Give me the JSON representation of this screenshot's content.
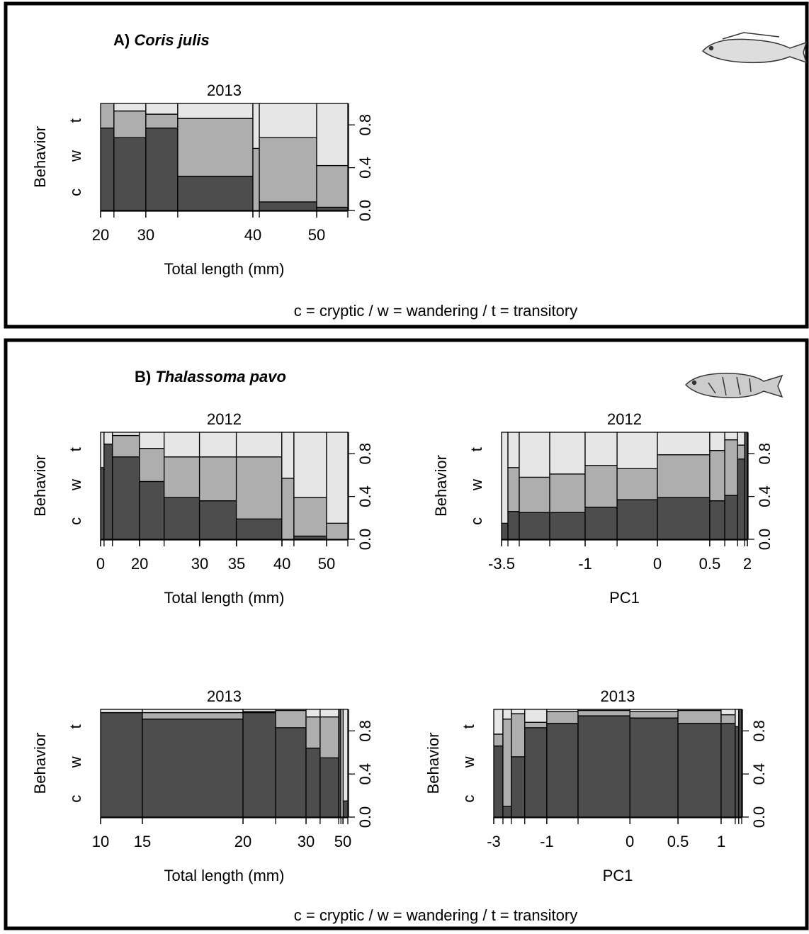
{
  "panels": [
    {
      "label": "A)",
      "species": "Coris julis",
      "legend": "c = cryptic / w = wandering / t = transitory"
    },
    {
      "label": "B)",
      "species": "Thalassoma pavo",
      "legend": "c = cryptic / w = wandering / t = transitory"
    }
  ],
  "chart_data": [
    {
      "type": "spineplot",
      "title": "2013",
      "xlabel": "Total length (mm)",
      "ylabel": "Behavior",
      "widths": [
        0.054,
        0.129,
        0.129,
        0.304,
        0.026,
        0.232,
        0.126
      ],
      "series": [
        {
          "name": "c",
          "color": "#4d4d4d",
          "values": [
            0.77,
            0.68,
            0.77,
            0.32,
            0.0,
            0.08,
            0.03
          ]
        },
        {
          "name": "w",
          "color": "#aeaeae",
          "values": [
            0.23,
            0.25,
            0.13,
            0.54,
            0.58,
            0.6,
            0.39
          ]
        },
        {
          "name": "t",
          "color": "#e6e6e6",
          "values": [
            0.0,
            0.07,
            0.1,
            0.14,
            0.42,
            0.32,
            0.58
          ]
        }
      ],
      "xlim": [
        0,
        1
      ],
      "xticks": [
        {
          "value": 0,
          "label": "20"
        },
        {
          "value": 0.183,
          "label": "30"
        },
        {
          "value": 0.616,
          "label": "40"
        },
        {
          "value": 0.874,
          "label": "50"
        }
      ],
      "ylim": [
        0,
        1
      ],
      "yticks": [
        {
          "value": 0,
          "label": "0.0"
        },
        0.4,
        0.8
      ]
    },
    {
      "type": "spineplot",
      "title": "2012",
      "xlabel": "Total length (mm)",
      "ylabel": "Behavior",
      "widths": [
        0.014,
        0.034,
        0.109,
        0.1,
        0.143,
        0.149,
        0.184,
        0.049,
        0.132,
        0.086
      ],
      "series": [
        {
          "name": "c",
          "color": "#4d4d4d",
          "values": [
            0.67,
            0.89,
            0.77,
            0.54,
            0.39,
            0.36,
            0.19,
            0.0,
            0.03,
            0.0
          ]
        },
        {
          "name": "w",
          "color": "#aeaeae",
          "values": [
            0.0,
            0.0,
            0.2,
            0.31,
            0.38,
            0.41,
            0.58,
            0.57,
            0.36,
            0.15
          ]
        },
        {
          "name": "t",
          "color": "#e6e6e6",
          "values": [
            0.33,
            0.11,
            0.03,
            0.15,
            0.23,
            0.23,
            0.23,
            0.43,
            0.61,
            0.85
          ]
        }
      ],
      "xlim": [
        0,
        1
      ],
      "xticks": [
        0,
        {
          "value": 0.158,
          "label": "20"
        },
        {
          "value": 0.401,
          "label": "30"
        },
        {
          "value": 0.55,
          "label": "35"
        },
        {
          "value": 0.734,
          "label": "40"
        },
        {
          "value": 0.914,
          "label": "50"
        }
      ],
      "ylim": [
        0,
        1
      ],
      "yticks": [
        {
          "value": 0,
          "label": "0.0"
        },
        0.4,
        0.8
      ]
    },
    {
      "type": "spineplot",
      "title": "2012",
      "xlabel": "PC1",
      "ylabel": "Behavior",
      "widths": [
        0.026,
        0.046,
        0.124,
        0.144,
        0.13,
        0.164,
        0.213,
        0.061,
        0.052,
        0.029,
        0.011
      ],
      "series": [
        {
          "name": "c",
          "color": "#4d4d4d",
          "values": [
            0.15,
            0.26,
            0.25,
            0.25,
            0.3,
            0.37,
            0.39,
            0.36,
            0.41,
            0.75,
            1.0
          ]
        },
        {
          "name": "w",
          "color": "#aeaeae",
          "values": [
            0.0,
            0.41,
            0.33,
            0.36,
            0.39,
            0.29,
            0.4,
            0.47,
            0.52,
            0.13,
            0.0
          ]
        },
        {
          "name": "t",
          "color": "#e6e6e6",
          "values": [
            0.85,
            0.33,
            0.42,
            0.39,
            0.31,
            0.34,
            0.21,
            0.17,
            0.07,
            0.12,
            0.0
          ]
        }
      ],
      "xlim": [
        0,
        1
      ],
      "xticks": [
        {
          "value": 0,
          "label": "-3.5"
        },
        {
          "value": 0.34,
          "label": "-1"
        },
        {
          "value": 0.634,
          "label": "0"
        },
        {
          "value": 0.847,
          "label": "0.5"
        },
        {
          "value": 1,
          "label": "2"
        }
      ],
      "ylim": [
        0,
        1
      ],
      "yticks": [
        {
          "value": 0,
          "label": "0.0"
        },
        0.4,
        0.8
      ]
    },
    {
      "type": "spineplot",
      "title": "2013",
      "xlabel": "Total length (mm)",
      "ylabel": "Behavior",
      "widths": [
        0.169,
        0.407,
        0.132,
        0.123,
        0.057,
        0.075,
        0.009,
        0.009,
        0.019
      ],
      "series": [
        {
          "name": "c",
          "color": "#4d4d4d",
          "values": [
            0.97,
            0.91,
            0.97,
            0.83,
            0.64,
            0.55,
            1.0,
            0.0,
            0.15
          ]
        },
        {
          "name": "w",
          "color": "#aeaeae",
          "values": [
            0.0,
            0.06,
            0.01,
            0.16,
            0.29,
            0.38,
            0.0,
            0.0,
            0.0
          ]
        },
        {
          "name": "t",
          "color": "#e6e6e6",
          "values": [
            0.03,
            0.03,
            0.02,
            0.01,
            0.07,
            0.07,
            0.0,
            1.0,
            0.85
          ]
        }
      ],
      "xlim": [
        0,
        1
      ],
      "xticks": [
        {
          "value": 0,
          "label": "10"
        },
        {
          "value": 0.169,
          "label": "15"
        },
        {
          "value": 0.576,
          "label": "20"
        },
        {
          "value": 0.831,
          "label": "30"
        },
        {
          "value": 0.98,
          "label": "50"
        }
      ],
      "ylim": [
        0,
        1
      ],
      "yticks": [
        {
          "value": 0,
          "label": "0.0"
        },
        0.4,
        0.8
      ]
    },
    {
      "type": "spineplot",
      "title": "2013",
      "xlabel": "PC1",
      "ylabel": "Behavior",
      "widths": [
        0.037,
        0.034,
        0.054,
        0.089,
        0.126,
        0.209,
        0.194,
        0.174,
        0.057,
        0.014,
        0.012
      ],
      "series": [
        {
          "name": "c",
          "color": "#4d4d4d",
          "values": [
            0.66,
            0.1,
            0.56,
            0.83,
            0.87,
            0.94,
            0.92,
            0.87,
            0.87,
            0.84,
            1.0
          ]
        },
        {
          "name": "w",
          "color": "#aeaeae",
          "values": [
            0.11,
            0.81,
            0.4,
            0.05,
            0.11,
            0.05,
            0.06,
            0.12,
            0.08,
            0.0,
            0.0
          ]
        },
        {
          "name": "t",
          "color": "#e6e6e6",
          "values": [
            0.23,
            0.09,
            0.04,
            0.12,
            0.02,
            0.01,
            0.02,
            0.01,
            0.05,
            0.16,
            0.0
          ]
        }
      ],
      "xlim": [
        0,
        1
      ],
      "xticks": [
        {
          "value": 0,
          "label": "-3"
        },
        {
          "value": 0.214,
          "label": "-1"
        },
        {
          "value": 0.549,
          "label": "0"
        },
        {
          "value": 0.743,
          "label": "0.5"
        },
        {
          "value": 0.917,
          "label": "1"
        }
      ],
      "ylim": [
        0,
        1
      ],
      "yticks": [
        {
          "value": 0,
          "label": "0.0"
        },
        0.4,
        0.8
      ]
    }
  ]
}
